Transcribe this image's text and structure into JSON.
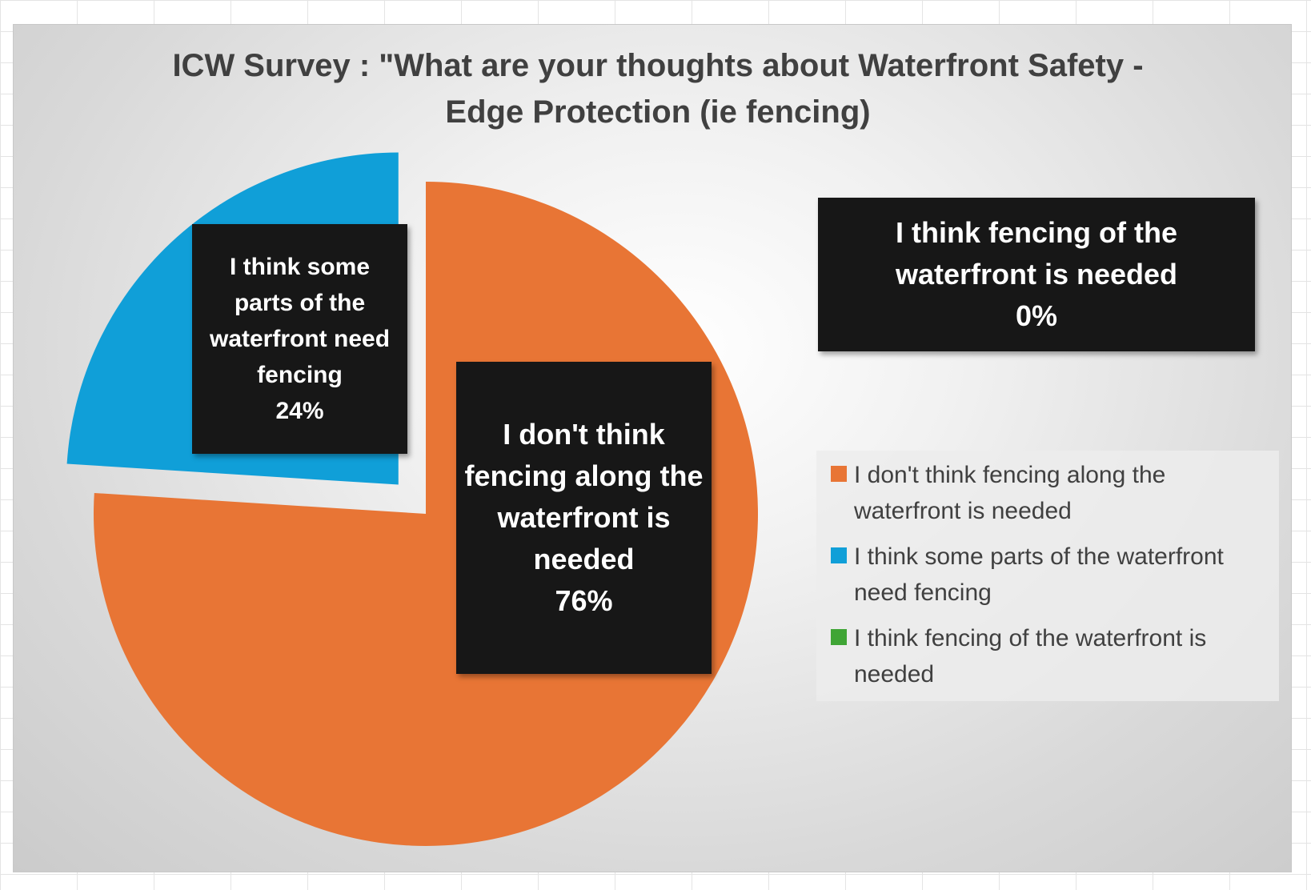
{
  "chart_data": {
    "type": "pie",
    "title": "ICW Survey : \"What are your thoughts about Waterfront Safety - Edge Protection  (ie fencing)",
    "slices": [
      {
        "label": "I don't think fencing along the waterfront is needed",
        "value": 76,
        "value_label": "76%",
        "color": "#E87535",
        "exploded": false
      },
      {
        "label": "I think some parts of the waterfront need fencing",
        "value": 24,
        "value_label": "24%",
        "color": "#109FD8",
        "exploded": true
      },
      {
        "label": "I think fencing of the waterfront is needed",
        "value": 0,
        "value_label": "0%",
        "color": "#3FA535",
        "exploded": false
      }
    ],
    "legend_position": "right"
  }
}
